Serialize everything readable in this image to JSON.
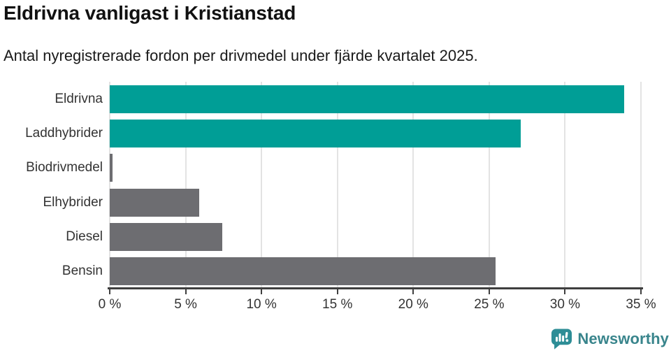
{
  "header": {
    "title": "Eldrivna vanligast i Kristianstad",
    "subtitle": "Antal nyregistrerade fordon per drivmedel under fjärde kvartalet 2025."
  },
  "chart_data": {
    "type": "bar",
    "orientation": "horizontal",
    "title": "Eldrivna vanligast i Kristianstad",
    "subtitle": "Antal nyregistrerade fordon per drivmedel under fjärde kvartalet 2025.",
    "categories": [
      "Eldrivna",
      "Laddhybrider",
      "Biodrivmedel",
      "Elhybrider",
      "Diesel",
      "Bensin"
    ],
    "values": [
      33.9,
      27.1,
      0.2,
      5.9,
      7.4,
      25.4
    ],
    "unit": "%",
    "xlim": [
      0,
      35
    ],
    "x_ticks": [
      0,
      5,
      10,
      15,
      20,
      25,
      30,
      35
    ],
    "x_tick_labels": [
      "0 %",
      "5 %",
      "10 %",
      "15 %",
      "20 %",
      "25 %",
      "30 %",
      "35 %"
    ],
    "bar_colors": [
      "#009e96",
      "#009e96",
      "#6d6d71",
      "#6d6d71",
      "#6d6d71",
      "#6d6d71"
    ],
    "grid": true,
    "legend": false,
    "xlabel": "",
    "ylabel": ""
  },
  "colors": {
    "background": "#ffffff",
    "title_text": "#111111",
    "subtitle_text": "#1a1a1a",
    "label_text": "#333333",
    "gridline": "#e3e3e3",
    "axis": "#3f3f3f",
    "accent_teal": "#009e96",
    "neutral_gray": "#6d6d71",
    "brand_teal": "#39858c",
    "logo_teal": "#2d8d96"
  },
  "footer": {
    "brand": "Newsworthy",
    "logo_icon": "newsworthy-speech-bubble-chart-icon"
  }
}
